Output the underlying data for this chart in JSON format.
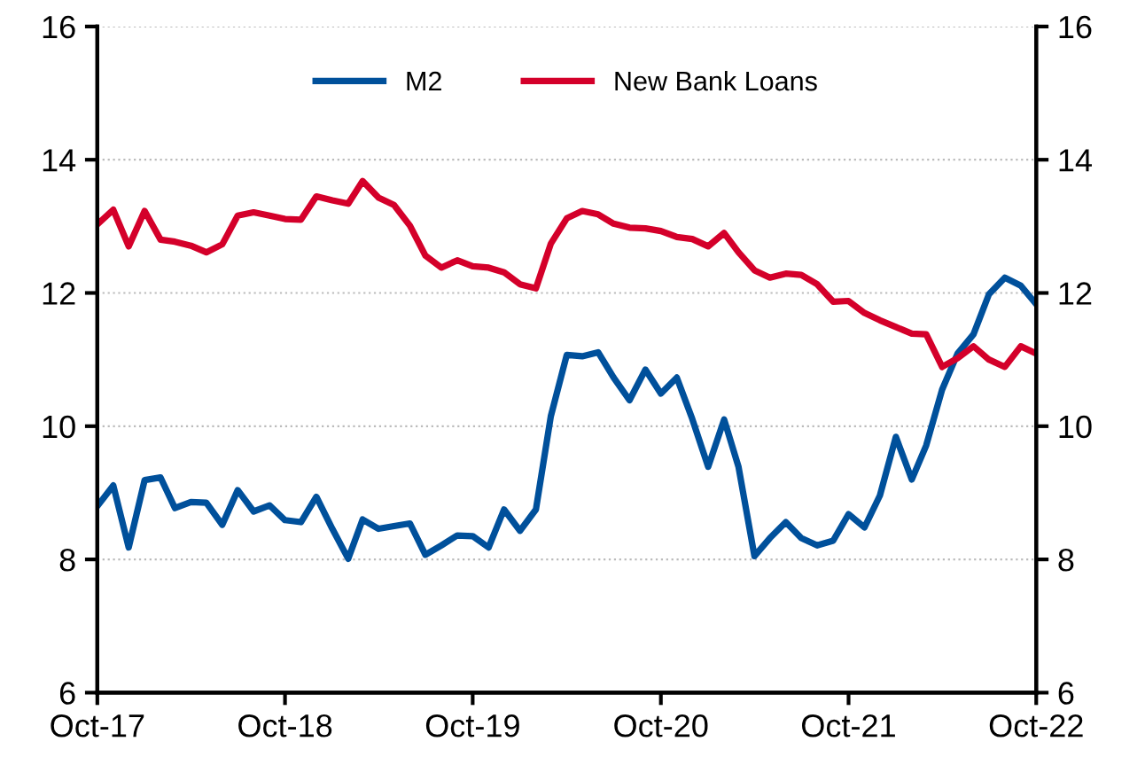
{
  "chart_data": {
    "type": "line",
    "x": [
      "2017-10",
      "2017-11",
      "2017-12",
      "2018-01",
      "2018-02",
      "2018-03",
      "2018-04",
      "2018-05",
      "2018-06",
      "2018-07",
      "2018-08",
      "2018-09",
      "2018-10",
      "2018-11",
      "2018-12",
      "2019-01",
      "2019-02",
      "2019-03",
      "2019-04",
      "2019-05",
      "2019-06",
      "2019-07",
      "2019-08",
      "2019-09",
      "2019-10",
      "2019-11",
      "2019-12",
      "2020-01",
      "2020-02",
      "2020-03",
      "2020-04",
      "2020-05",
      "2020-06",
      "2020-07",
      "2020-08",
      "2020-09",
      "2020-10",
      "2020-11",
      "2020-12",
      "2021-01",
      "2021-02",
      "2021-03",
      "2021-04",
      "2021-05",
      "2021-06",
      "2021-07",
      "2021-08",
      "2021-09",
      "2021-10",
      "2021-11",
      "2021-12",
      "2022-01",
      "2022-02",
      "2022-03",
      "2022-04",
      "2022-05",
      "2022-06",
      "2022-07",
      "2022-08",
      "2022-09",
      "2022-10"
    ],
    "series": [
      {
        "name": "M2",
        "color": "#00509b",
        "values": [
          8.8,
          9.11,
          8.18,
          9.19,
          9.23,
          8.77,
          8.86,
          8.85,
          8.52,
          9.04,
          8.72,
          8.81,
          8.59,
          8.56,
          8.94,
          8.46,
          8.01,
          8.6,
          8.46,
          8.5,
          8.54,
          8.07,
          8.21,
          8.36,
          8.35,
          8.18,
          8.75,
          8.43,
          8.75,
          10.15,
          11.07,
          11.05,
          11.11,
          10.73,
          10.39,
          10.85,
          10.49,
          10.73,
          10.11,
          9.39,
          10.1,
          9.39,
          8.05,
          8.32,
          8.56,
          8.32,
          8.21,
          8.28,
          8.68,
          8.48,
          8.96,
          9.84,
          9.2,
          9.71,
          10.55,
          11.09,
          11.38,
          11.98,
          12.23,
          12.11,
          11.83
        ]
      },
      {
        "name": "New Bank Loans",
        "color": "#d4002a",
        "values": [
          13.03,
          13.25,
          12.7,
          13.23,
          12.8,
          12.77,
          12.71,
          12.61,
          12.73,
          13.16,
          13.21,
          13.16,
          13.11,
          13.1,
          13.45,
          13.39,
          13.34,
          13.68,
          13.43,
          13.32,
          13.01,
          12.56,
          12.38,
          12.49,
          12.4,
          12.38,
          12.31,
          12.13,
          12.07,
          12.74,
          13.12,
          13.23,
          13.18,
          13.04,
          12.98,
          12.97,
          12.93,
          12.84,
          12.81,
          12.7,
          12.9,
          12.61,
          12.34,
          12.23,
          12.29,
          12.27,
          12.13,
          11.87,
          11.88,
          11.7,
          11.59,
          11.49,
          11.39,
          11.38,
          10.89,
          11.02,
          11.2,
          11.0,
          10.89,
          11.2,
          11.09
        ]
      }
    ],
    "xlim": [
      "2017-10",
      "2022-10"
    ],
    "xticks": [
      {
        "value": "2017-10",
        "label": "Oct-17"
      },
      {
        "value": "2018-10",
        "label": "Oct-18"
      },
      {
        "value": "2019-10",
        "label": "Oct-19"
      },
      {
        "value": "2020-10",
        "label": "Oct-20"
      },
      {
        "value": "2021-10",
        "label": "Oct-21"
      },
      {
        "value": "2022-10",
        "label": "Oct-22"
      }
    ],
    "ylim": [
      6,
      16
    ],
    "yticks": [
      6,
      8,
      10,
      12,
      14,
      16
    ],
    "y2lim": [
      6,
      16
    ],
    "y2ticks": [
      6,
      8,
      10,
      12,
      14,
      16
    ],
    "grid": "y",
    "legend": "top",
    "marker": "none",
    "line_style": "solid"
  }
}
